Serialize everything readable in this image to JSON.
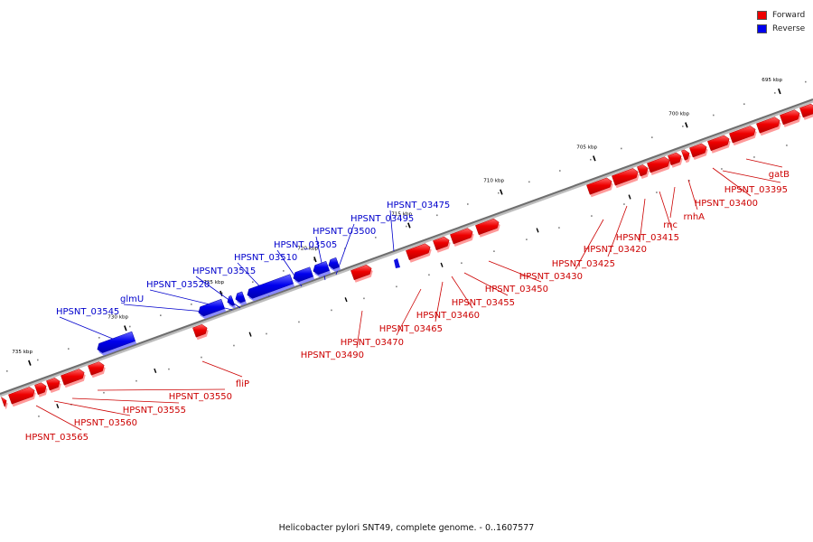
{
  "legend": {
    "forward_label": "Forward",
    "reverse_label": "Reverse",
    "forward_color": "#ee0000",
    "reverse_color": "#0000ee"
  },
  "caption": "Helicobacter pylori SNT49, complete genome. - 0..1607577",
  "ticks": [
    "695 kbp",
    "700 kbp",
    "705 kbp",
    "710 kbp",
    "715 kbp",
    "720 kbp",
    "725 kbp",
    "730 kbp",
    "735 kbp"
  ],
  "features": {
    "forward": [
      {
        "label": "gatB"
      },
      {
        "label": "HPSNT_03395"
      },
      {
        "label": "HPSNT_03400"
      },
      {
        "label": "rnhA"
      },
      {
        "label": "rnc"
      },
      {
        "label": "HPSNT_03415"
      },
      {
        "label": "HPSNT_03420"
      },
      {
        "label": "HPSNT_03425"
      },
      {
        "label": "HPSNT_03430"
      },
      {
        "label": "HPSNT_03450"
      },
      {
        "label": "HPSNT_03455"
      },
      {
        "label": "HPSNT_03460"
      },
      {
        "label": "HPSNT_03465"
      },
      {
        "label": "HPSNT_03470"
      },
      {
        "label": "HPSNT_03490"
      },
      {
        "label": "fliP"
      },
      {
        "label": "HPSNT_03550"
      },
      {
        "label": "HPSNT_03555"
      },
      {
        "label": "HPSNT_03560"
      },
      {
        "label": "HPSNT_03565"
      }
    ],
    "reverse": [
      {
        "label": "HPSNT_03475"
      },
      {
        "label": "HPSNT_03495"
      },
      {
        "label": "HPSNT_03500"
      },
      {
        "label": "HPSNT_03505"
      },
      {
        "label": "HPSNT_03510"
      },
      {
        "label": "HPSNT_03515"
      },
      {
        "label": "HPSNT_03520"
      },
      {
        "label": "glmU"
      },
      {
        "label": "HPSNT_03545"
      }
    ]
  }
}
